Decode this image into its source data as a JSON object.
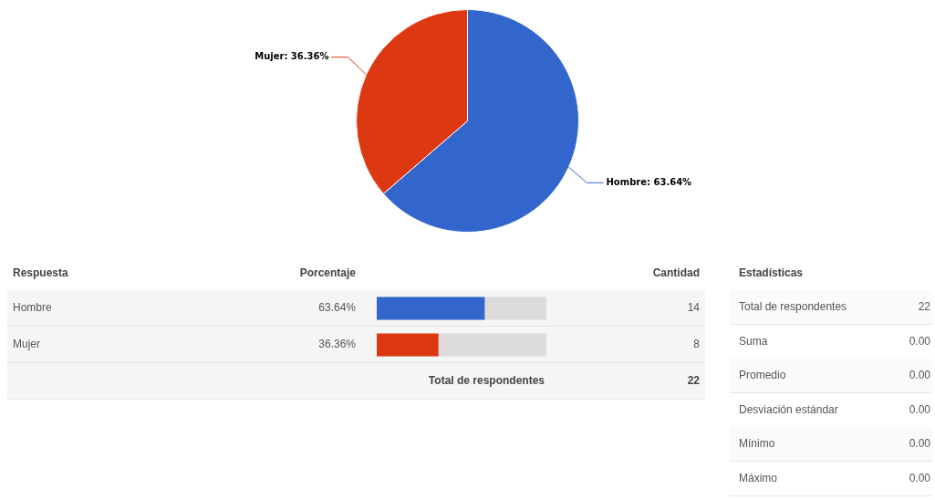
{
  "chart_data": [
    {
      "type": "pie",
      "categories": [
        "Hombre",
        "Mujer"
      ],
      "values": [
        63.64,
        36.36
      ],
      "colors": [
        "#3366cc",
        "#dc3912"
      ],
      "value_labels": [
        "63.64%",
        "36.36%"
      ],
      "legend": false
    },
    {
      "type": "bar",
      "orientation": "horizontal",
      "categories": [
        "Hombre",
        "Mujer"
      ],
      "values": [
        63.64,
        36.36
      ],
      "colors": [
        "#3366cc",
        "#dc3912"
      ],
      "xlim": [
        0,
        100
      ],
      "tick_labels": false,
      "value_labels": [
        "63.64%",
        "36.36%"
      ],
      "annotations": [
        "Respuesta",
        "Porcentaje",
        "Cantidad",
        "14",
        "8",
        "Total de respondentes",
        "22"
      ]
    },
    {
      "type": "other",
      "title": "Estadísticas",
      "annotations": [
        "Total de respondentes",
        "22",
        "Suma",
        "0.00",
        "Promedio",
        "0.00",
        "Desviación estándar",
        "0.00",
        "Mínimo",
        "0.00",
        "Máximo",
        "0.00"
      ]
    }
  ]
}
